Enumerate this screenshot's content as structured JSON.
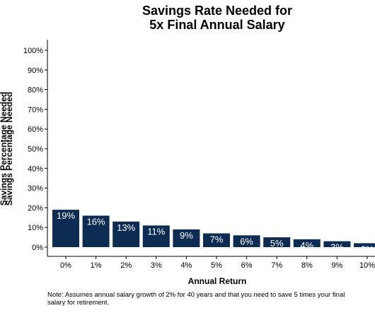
{
  "chart_data": {
    "type": "bar",
    "title_lines": [
      "Savings Rate Needed for",
      "5x Final Annual Salary"
    ],
    "xlabel": "Annual Return",
    "ylabel": "Savings Percentage Needed",
    "categories": [
      "0%",
      "1%",
      "2%",
      "3%",
      "4%",
      "5%",
      "6%",
      "7%",
      "8%",
      "9%",
      "10%"
    ],
    "values": [
      19,
      16,
      13,
      11,
      9,
      7,
      6,
      5,
      4,
      3,
      2
    ],
    "data_labels": [
      "19%",
      "16%",
      "13%",
      "11%",
      "9%",
      "7%",
      "6%",
      "5%",
      "4%",
      "3%",
      "2%"
    ],
    "y_ticks": [
      0,
      10,
      20,
      30,
      40,
      50,
      60,
      70,
      80,
      90,
      100
    ],
    "y_tick_labels": [
      "0%",
      "10%",
      "20%",
      "30%",
      "40%",
      "50%",
      "60%",
      "70%",
      "80%",
      "90%",
      "100%"
    ],
    "ylim": [
      0,
      100
    ],
    "grid": false,
    "bar_color": "#0d2c54",
    "note": "Note: Assumes annual salary growth of 2% for 40 years and that you need to save 5 times your final salary for retirement."
  }
}
